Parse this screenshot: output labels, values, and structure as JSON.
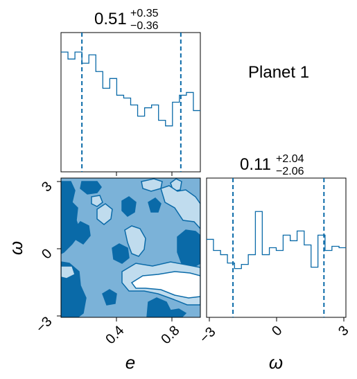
{
  "chart_data": {
    "type": "corner",
    "colors": {
      "line": "#0a6aa8",
      "fill_dark": "#0a6aa8",
      "fill_mid": "#7bb2d8",
      "fill_light": "#c0dcee",
      "dashed": "#0a6aa8"
    },
    "annotation": "Planet 1",
    "panels": [
      {
        "kind": "histogram",
        "param": "e",
        "title_value": "0.51",
        "title_plus": "+0.35",
        "title_minus": "−0.36",
        "xlim": [
          0.0,
          1.0
        ],
        "quantile_lines": [
          0.15,
          0.86
        ],
        "bin_edges": [
          0.0,
          0.05,
          0.1,
          0.15,
          0.2,
          0.25,
          0.3,
          0.35,
          0.4,
          0.45,
          0.5,
          0.55,
          0.6,
          0.65,
          0.7,
          0.75,
          0.8,
          0.85,
          0.9,
          0.95,
          1.0
        ],
        "counts": [
          0.86,
          0.81,
          0.86,
          0.78,
          0.84,
          0.72,
          0.6,
          0.67,
          0.55,
          0.53,
          0.48,
          0.4,
          0.46,
          0.48,
          0.37,
          0.33,
          0.5,
          0.55,
          0.57,
          0.44
        ]
      },
      {
        "kind": "histogram",
        "param": "ω",
        "title_value": "0.11",
        "title_plus": "+2.04",
        "title_minus": "−2.06",
        "xlim": [
          -3.14,
          3.14
        ],
        "xticks": [
          "−3",
          "0",
          "3"
        ],
        "quantile_lines": [
          -1.95,
          2.15
        ],
        "bin_edges": [
          -3.14,
          -2.83,
          -2.51,
          -2.2,
          -1.88,
          -1.57,
          -1.26,
          -0.94,
          -0.63,
          -0.31,
          0.0,
          0.31,
          0.63,
          0.94,
          1.26,
          1.57,
          1.88,
          2.2,
          2.51,
          2.83,
          3.14
        ],
        "counts": [
          0.56,
          0.48,
          0.45,
          0.39,
          0.35,
          0.38,
          0.45,
          0.76,
          0.45,
          0.5,
          0.48,
          0.59,
          0.55,
          0.62,
          0.52,
          0.36,
          0.59,
          0.48,
          0.51,
          0.5
        ]
      },
      {
        "kind": "density2d",
        "xparam": "e",
        "yparam": "ω",
        "xlim": [
          0.0,
          1.0
        ],
        "ylim": [
          -3.14,
          3.14
        ],
        "xticks": [
          "0.4",
          "0.8"
        ],
        "yticks": [
          "3",
          "0",
          "−3"
        ]
      }
    ]
  }
}
